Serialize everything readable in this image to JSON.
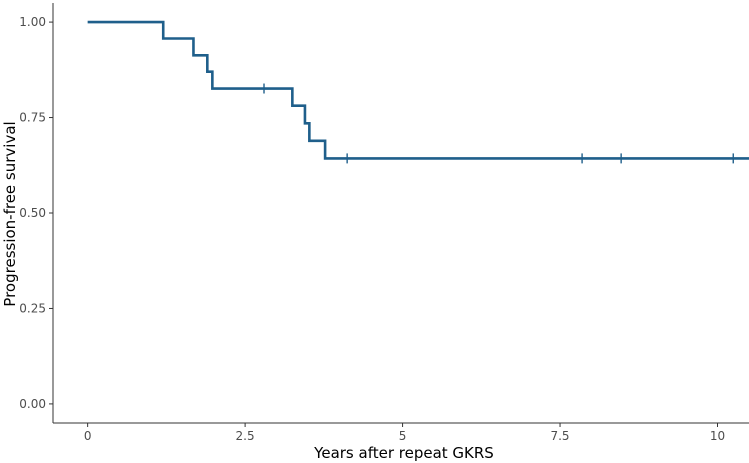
{
  "chart_data": {
    "type": "line",
    "subtype": "kaplan-meier-step",
    "title": "",
    "xlabel": "Years after repeat GKRS",
    "ylabel": "Progression-free survival",
    "xlim": [
      -0.55,
      10.5
    ],
    "ylim": [
      -0.05,
      1.05
    ],
    "x_ticks": [
      0,
      2.5,
      5,
      7.5,
      10
    ],
    "x_tick_labels": [
      "0",
      "2.5",
      "5",
      "7.5",
      "10"
    ],
    "y_ticks": [
      0,
      0.25,
      0.5,
      0.75,
      1.0
    ],
    "y_tick_labels": [
      "0.00",
      "0.25",
      "0.50",
      "0.75",
      "1.00"
    ],
    "grid": false,
    "legend": "none",
    "series": [
      {
        "color": "#1f5f8b",
        "steps": [
          {
            "x": 0,
            "y": 1.0
          },
          {
            "x": 1.2,
            "y": 0.957
          },
          {
            "x": 1.68,
            "y": 0.913
          },
          {
            "x": 1.9,
            "y": 0.87
          },
          {
            "x": 1.98,
            "y": 0.826
          },
          {
            "x": 3.25,
            "y": 0.781
          },
          {
            "x": 3.45,
            "y": 0.735
          },
          {
            "x": 3.52,
            "y": 0.689
          },
          {
            "x": 3.77,
            "y": 0.643
          }
        ],
        "end_x": 10.5,
        "censored": [
          {
            "x": 2.8,
            "y": 0.826
          },
          {
            "x": 4.12,
            "y": 0.643
          },
          {
            "x": 7.85,
            "y": 0.643
          },
          {
            "x": 8.47,
            "y": 0.643
          },
          {
            "x": 10.25,
            "y": 0.643
          }
        ]
      }
    ]
  }
}
